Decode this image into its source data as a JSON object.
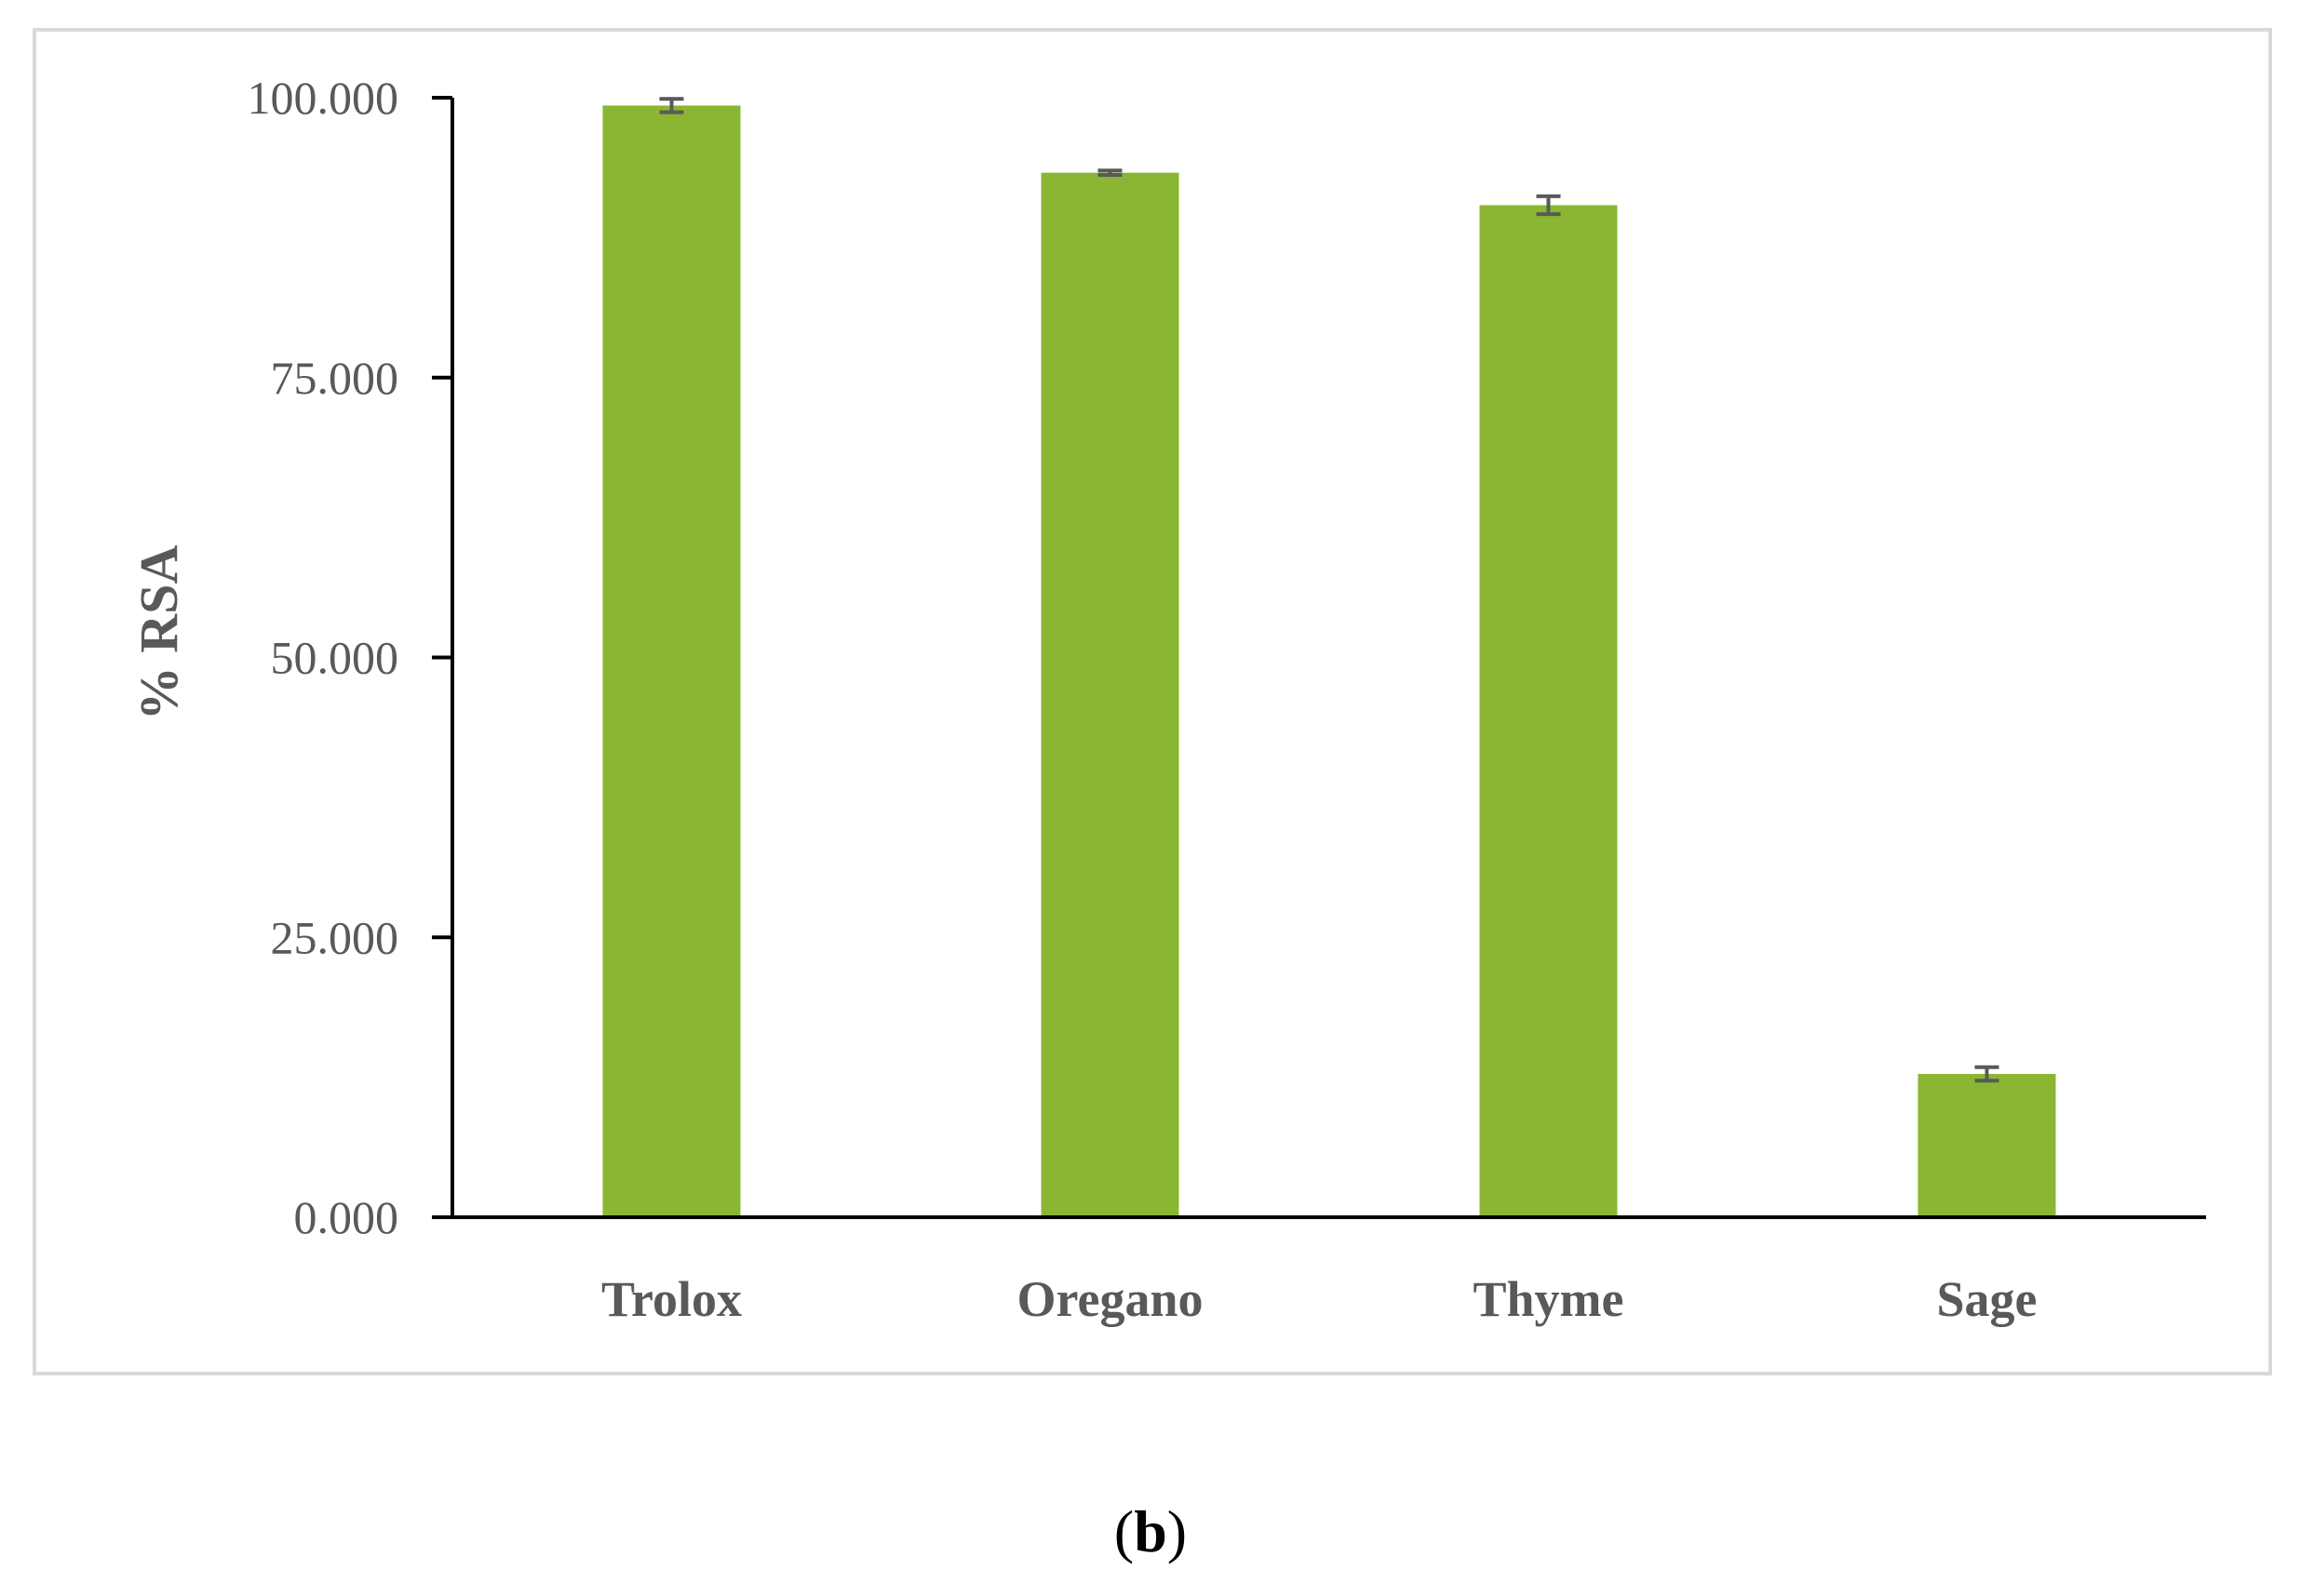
{
  "chart_data": {
    "type": "bar",
    "categories": [
      "Trolox",
      "Oregano",
      "Thyme",
      "Sage"
    ],
    "values": [
      99.3,
      93.3,
      90.4,
      12.8
    ],
    "errors": [
      0.6,
      0.2,
      0.8,
      0.6
    ],
    "title": "",
    "xlabel": "",
    "ylabel": "% RSA",
    "ylim": [
      0,
      100
    ],
    "yticks": [
      0,
      25,
      50,
      75,
      100
    ],
    "ytick_labels": [
      "0.000",
      "25.000",
      "50.000",
      "75.000",
      "100.000"
    ],
    "grid": false,
    "legend": "none",
    "colors": {
      "bar": "#8ab633",
      "error_bar": "#595959",
      "axis": "#000000",
      "frame": "#d9d9d9",
      "text": "#595959"
    }
  },
  "panel_label": {
    "open": "(",
    "letter": "b",
    "close": ")"
  }
}
